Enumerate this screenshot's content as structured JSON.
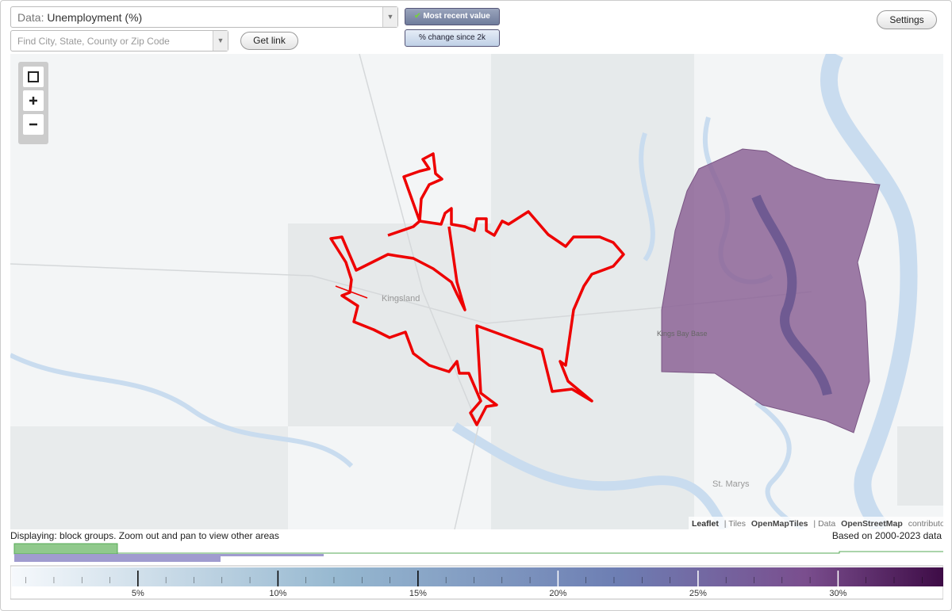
{
  "header": {
    "data_prefix": "Data:",
    "data_value": "Unemployment (%)",
    "search_placeholder": "Find City, State, County or Zip Code",
    "get_link": "Get link",
    "mode_primary": "Most recent value",
    "mode_secondary": "% change since 2k",
    "settings": "Settings"
  },
  "map": {
    "places": [
      "Kingsland",
      "Kings Bay Base",
      "St. Marys"
    ],
    "attribution": {
      "leaflet": "Leaflet",
      "tiles_prefix": "| Tiles",
      "tiles": "OpenMapTiles",
      "data_prefix": "| Data",
      "data": "OpenStreetMap",
      "suffix": "contributors"
    }
  },
  "footer": {
    "displaying": "Displaying: block groups. Zoom out and pan to view other areas",
    "based_on": "Based on 2000-2023 data",
    "help": "?"
  },
  "legend": {
    "range": [
      0.5,
      33.7
    ],
    "ticks": [
      {
        "value": 5,
        "label": "5%"
      },
      {
        "value": 10,
        "label": "10%"
      },
      {
        "value": 15,
        "label": "15%"
      },
      {
        "value": 20,
        "label": "20%"
      },
      {
        "value": 25,
        "label": "25%"
      },
      {
        "value": 30,
        "label": "30%"
      }
    ]
  }
}
